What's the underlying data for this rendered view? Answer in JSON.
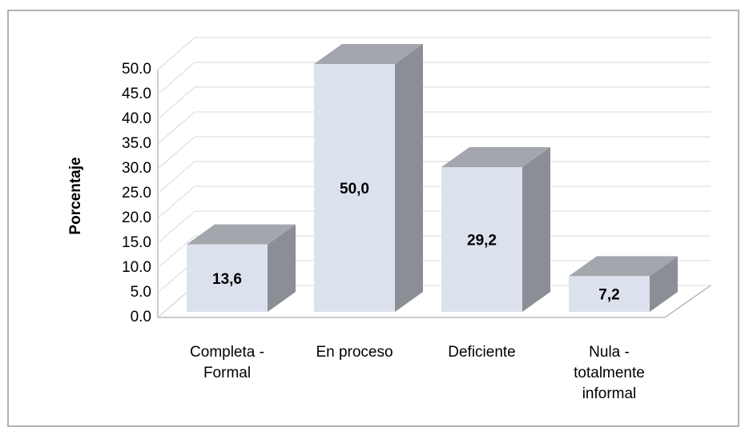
{
  "chart_data": {
    "type": "bar3d",
    "ylabel": "Porcentaje",
    "categories": [
      "Completa - Formal",
      "En proceso",
      "Deficiente",
      "Nula - totalmente informal"
    ],
    "values": [
      13.6,
      50.0,
      29.2,
      7.2
    ],
    "value_labels": [
      "13,6",
      "50,0",
      "29,2",
      "7,2"
    ],
    "color": "#dce2ed",
    "ylim": [
      0,
      50
    ],
    "yticks": [
      {
        "value": 0,
        "label": "0.0"
      },
      {
        "value": 5,
        "label": "5.0"
      },
      {
        "value": 10,
        "label": "10.0"
      },
      {
        "value": 15,
        "label": "15.0"
      },
      {
        "value": 20,
        "label": "20.0"
      },
      {
        "value": 25,
        "label": "25.0"
      },
      {
        "value": 30,
        "label": "30.0"
      },
      {
        "value": 35,
        "label": "35.0"
      },
      {
        "value": 40,
        "label": "40.0"
      },
      {
        "value": 45,
        "label": "45.0"
      },
      {
        "value": 50,
        "label": "50.0"
      }
    ],
    "grid": true
  }
}
